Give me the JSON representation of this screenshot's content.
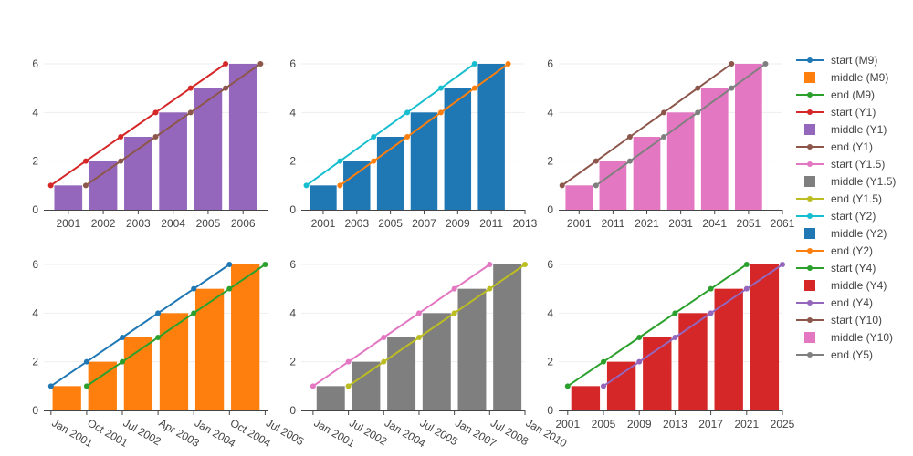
{
  "chart_data": [
    {
      "type": "bar",
      "axis_type": "date",
      "x_ticks": [
        "2001",
        "2002",
        "2003",
        "2004",
        "2005",
        "2006"
      ],
      "y_ticks": [
        "0",
        "2",
        "4",
        "6"
      ],
      "ylim": [
        0,
        6.3
      ],
      "grid": true,
      "series": [
        {
          "name": "start (Y1)",
          "type": "line",
          "color": "#d62728",
          "x": [
            "2000-07-01",
            "2001-07-01",
            "2002-07-01",
            "2003-07-01",
            "2004-07-01",
            "2005-07-01"
          ],
          "values": [
            1,
            2,
            3,
            4,
            5,
            6
          ]
        },
        {
          "name": "middle (Y1)",
          "type": "bar",
          "color": "#9467bd",
          "x": [
            "2001-01-01",
            "2002-01-01",
            "2003-01-01",
            "2004-01-01",
            "2005-01-01",
            "2006-01-01"
          ],
          "values": [
            1,
            2,
            3,
            4,
            5,
            6
          ]
        },
        {
          "name": "end (Y1)",
          "type": "line",
          "color": "#8c564b",
          "x": [
            "2001-07-01",
            "2002-07-01",
            "2003-07-01",
            "2004-07-01",
            "2005-07-01",
            "2006-07-01"
          ],
          "values": [
            1,
            2,
            3,
            4,
            5,
            6
          ]
        }
      ]
    },
    {
      "type": "bar",
      "axis_type": "date",
      "x_ticks": [
        "2001",
        "2003",
        "2005",
        "2007",
        "2009",
        "2011",
        "2013"
      ],
      "y_ticks": [
        "0",
        "2",
        "4",
        "6"
      ],
      "ylim": [
        0,
        6.3
      ],
      "grid": true,
      "series": [
        {
          "name": "start (Y2)",
          "type": "line",
          "color": "#17becf",
          "x": [
            "2000",
            "2002",
            "2004",
            "2006",
            "2008",
            "2010"
          ],
          "values": [
            1,
            2,
            3,
            4,
            5,
            6
          ]
        },
        {
          "name": "middle (Y2)",
          "type": "bar",
          "color": "#1f77b4",
          "x": [
            "2001",
            "2003",
            "2005",
            "2007",
            "2009",
            "2011"
          ],
          "values": [
            1,
            2,
            3,
            4,
            5,
            6
          ]
        },
        {
          "name": "end (Y2)",
          "type": "line",
          "color": "#ff7f0e",
          "x": [
            "2002",
            "2004",
            "2006",
            "2008",
            "2010",
            "2012"
          ],
          "values": [
            1,
            2,
            3,
            4,
            5,
            6
          ]
        }
      ]
    },
    {
      "type": "bar",
      "axis_type": "date",
      "x_ticks": [
        "2001",
        "2011",
        "2021",
        "2031",
        "2041",
        "2051",
        "2061"
      ],
      "y_ticks": [
        "0",
        "2",
        "4",
        "6"
      ],
      "ylim": [
        0,
        6.3
      ],
      "grid": true,
      "series": [
        {
          "name": "start (Y10)",
          "type": "line",
          "color": "#8c564b",
          "x": [
            "1996",
            "2006",
            "2016",
            "2026",
            "2036",
            "2046"
          ],
          "values": [
            1,
            2,
            3,
            4,
            5,
            6
          ]
        },
        {
          "name": "middle (Y10)",
          "type": "bar",
          "color": "#e377c2",
          "x": [
            "2001",
            "2011",
            "2021",
            "2031",
            "2041",
            "2051"
          ],
          "values": [
            1,
            2,
            3,
            4,
            5,
            6
          ]
        },
        {
          "name": "end (Y5)",
          "type": "line",
          "color": "#7f7f7f",
          "x": [
            "2006",
            "2016",
            "2026",
            "2036",
            "2046",
            "2056"
          ],
          "values": [
            1,
            2,
            3,
            4,
            5,
            6
          ]
        }
      ]
    },
    {
      "type": "bar",
      "axis_type": "date",
      "x_ticks": [
        "Jan 2001",
        "Oct 2001",
        "Jul 2002",
        "Apr 2003",
        "Jan 2004",
        "Oct 2004",
        "Jul 2005"
      ],
      "y_ticks": [
        "0",
        "2",
        "4",
        "6"
      ],
      "ylim": [
        0,
        6.3
      ],
      "grid": true,
      "series": [
        {
          "name": "start (M9)",
          "type": "line",
          "color": "#1f77b4",
          "x": [
            "Jan 2001",
            "Oct 2001",
            "Jul 2002",
            "Apr 2003",
            "Jan 2004",
            "Oct 2004"
          ],
          "values": [
            1,
            2,
            3,
            4,
            5,
            6
          ]
        },
        {
          "name": "middle (M9)",
          "type": "bar",
          "color": "#ff7f0e",
          "x": [
            "May 2001",
            "Feb 2002",
            "Nov 2002",
            "Aug 2003",
            "May 2004",
            "Feb 2005"
          ],
          "values": [
            1,
            2,
            3,
            4,
            5,
            6
          ]
        },
        {
          "name": "end (M9)",
          "type": "line",
          "color": "#2ca02c",
          "x": [
            "Oct 2001",
            "Jul 2002",
            "Apr 2003",
            "Jan 2004",
            "Oct 2004",
            "Jul 2005"
          ],
          "values": [
            1,
            2,
            3,
            4,
            5,
            6
          ]
        }
      ]
    },
    {
      "type": "bar",
      "axis_type": "date",
      "x_ticks": [
        "Jan 2001",
        "Jul 2002",
        "Jan 2004",
        "Jul 2005",
        "Jan 2007",
        "Jul 2008",
        "Jan 2010"
      ],
      "y_ticks": [
        "0",
        "2",
        "4",
        "6"
      ],
      "ylim": [
        0,
        6.3
      ],
      "grid": true,
      "series": [
        {
          "name": "start (Y1.5)",
          "type": "line",
          "color": "#e377c2",
          "x": [
            "Jan 2001",
            "Jul 2002",
            "Jan 2004",
            "Jul 2005",
            "Jan 2007",
            "Jul 2008"
          ],
          "values": [
            1,
            2,
            3,
            4,
            5,
            6
          ]
        },
        {
          "name": "middle (Y1.5)",
          "type": "bar",
          "color": "#7f7f7f",
          "x": [
            "Oct 2001",
            "Apr 2003",
            "Oct 2004",
            "Apr 2006",
            "Oct 2007",
            "Apr 2009"
          ],
          "values": [
            1,
            2,
            3,
            4,
            5,
            6
          ]
        },
        {
          "name": "end (Y1.5)",
          "type": "line",
          "color": "#bcbd22",
          "x": [
            "Jul 2002",
            "Jan 2004",
            "Jul 2005",
            "Jan 2007",
            "Jul 2008",
            "Jan 2010"
          ],
          "values": [
            1,
            2,
            3,
            4,
            5,
            6
          ]
        }
      ]
    },
    {
      "type": "bar",
      "axis_type": "date",
      "x_ticks": [
        "2001",
        "2005",
        "2009",
        "2013",
        "2017",
        "2021",
        "2025"
      ],
      "y_ticks": [
        "0",
        "2",
        "4",
        "6"
      ],
      "ylim": [
        0,
        6.3
      ],
      "grid": true,
      "series": [
        {
          "name": "start (Y4)",
          "type": "line",
          "color": "#2ca02c",
          "x": [
            "2001",
            "2005",
            "2009",
            "2013",
            "2017",
            "2021"
          ],
          "values": [
            1,
            2,
            3,
            4,
            5,
            6
          ]
        },
        {
          "name": "middle (Y4)",
          "type": "bar",
          "color": "#d62728",
          "x": [
            "2003",
            "2007",
            "2011",
            "2015",
            "2019",
            "2023"
          ],
          "values": [
            1,
            2,
            3,
            4,
            5,
            6
          ]
        },
        {
          "name": "end (Y4)",
          "type": "line",
          "color": "#9467bd",
          "x": [
            "2005",
            "2009",
            "2013",
            "2017",
            "2021",
            "2025"
          ],
          "values": [
            1,
            2,
            3,
            4,
            5,
            6
          ]
        }
      ]
    }
  ],
  "legend": {
    "placement": "right",
    "items": [
      {
        "label": "start (M9)",
        "kind": "line",
        "color": "#1f77b4"
      },
      {
        "label": "middle (M9)",
        "kind": "bar",
        "color": "#ff7f0e"
      },
      {
        "label": "end (M9)",
        "kind": "line",
        "color": "#2ca02c"
      },
      {
        "label": "start (Y1)",
        "kind": "line",
        "color": "#d62728"
      },
      {
        "label": "middle (Y1)",
        "kind": "bar",
        "color": "#9467bd"
      },
      {
        "label": "end (Y1)",
        "kind": "line",
        "color": "#8c564b"
      },
      {
        "label": "start (Y1.5)",
        "kind": "line",
        "color": "#e377c2"
      },
      {
        "label": "middle (Y1.5)",
        "kind": "bar",
        "color": "#7f7f7f"
      },
      {
        "label": "end (Y1.5)",
        "kind": "line",
        "color": "#bcbd22"
      },
      {
        "label": "start (Y2)",
        "kind": "line",
        "color": "#17becf"
      },
      {
        "label": "middle (Y2)",
        "kind": "bar",
        "color": "#1f77b4"
      },
      {
        "label": "end (Y2)",
        "kind": "line",
        "color": "#ff7f0e"
      },
      {
        "label": "start (Y4)",
        "kind": "line",
        "color": "#2ca02c"
      },
      {
        "label": "middle (Y4)",
        "kind": "bar",
        "color": "#d62728"
      },
      {
        "label": "end (Y4)",
        "kind": "line",
        "color": "#9467bd"
      },
      {
        "label": "start (Y10)",
        "kind": "line",
        "color": "#8c564b"
      },
      {
        "label": "middle (Y10)",
        "kind": "bar",
        "color": "#e377c2"
      },
      {
        "label": "end (Y5)",
        "kind": "line",
        "color": "#7f7f7f"
      }
    ]
  }
}
